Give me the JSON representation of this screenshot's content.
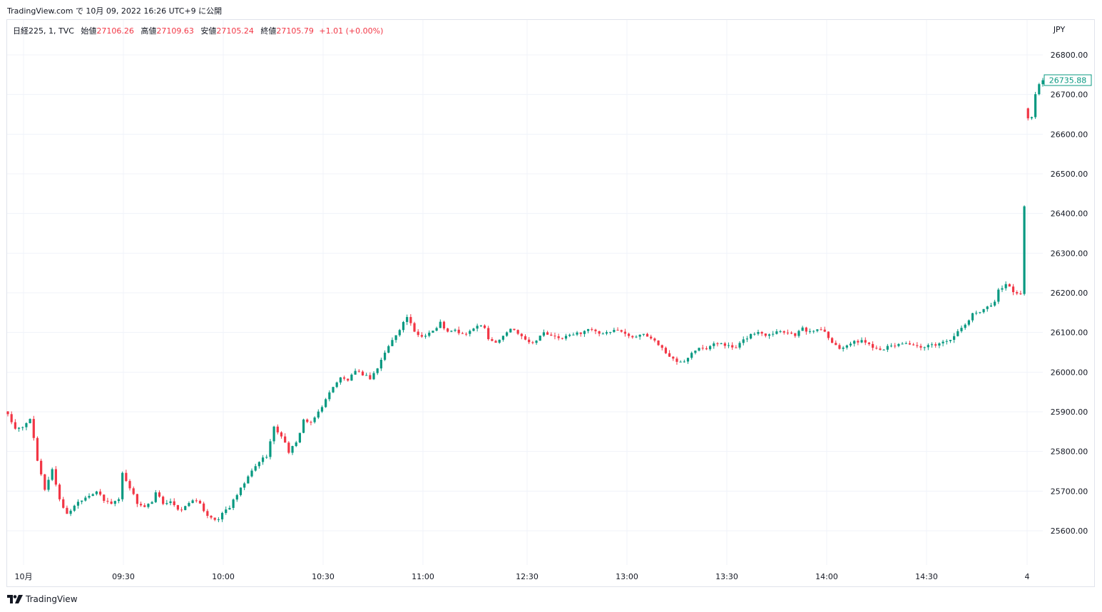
{
  "header": {
    "note": "TradingView.com で 10月 09, 2022 16:26 UTC+9 に公開"
  },
  "legend": {
    "symbol": "日経225, 1, TVC",
    "open_label": "始値",
    "open": "27106.26",
    "high_label": "高値",
    "high": "27109.63",
    "low_label": "安値",
    "low": "27105.24",
    "close_label": "終値",
    "close": "27105.79",
    "change": "+1.01 (+0.00%)"
  },
  "footer": {
    "brand": "TradingView"
  },
  "colors": {
    "up": "#089981",
    "down": "#f23645",
    "grid": "#f0f3fa",
    "text": "#131722"
  },
  "chart_data": {
    "type": "candlestick",
    "currency": "JPY",
    "ylim": [
      25520,
      26880
    ],
    "y_ticks": [
      "26800.00",
      "26700.00",
      "26600.00",
      "26500.00",
      "26400.00",
      "26300.00",
      "26200.00",
      "26100.00",
      "26000.00",
      "25900.00",
      "25800.00",
      "25700.00",
      "25600.00"
    ],
    "x_ticks": [
      "10月",
      "09:30",
      "10:00",
      "10:30",
      "11:00",
      "12:30",
      "13:00",
      "13:30",
      "14:00",
      "14:30",
      "4"
    ],
    "last_price": "26735.88",
    "close_points": [
      [
        0,
        25895
      ],
      [
        2,
        25855
      ],
      [
        4,
        25860
      ],
      [
        6,
        25885
      ],
      [
        8,
        25775
      ],
      [
        10,
        25705
      ],
      [
        12,
        25755
      ],
      [
        14,
        25680
      ],
      [
        16,
        25640
      ],
      [
        18,
        25665
      ],
      [
        20,
        25680
      ],
      [
        22,
        25690
      ],
      [
        24,
        25700
      ],
      [
        26,
        25675
      ],
      [
        28,
        25670
      ],
      [
        30,
        25680
      ],
      [
        31,
        25745
      ],
      [
        33,
        25710
      ],
      [
        35,
        25670
      ],
      [
        37,
        25660
      ],
      [
        39,
        25670
      ],
      [
        40,
        25695
      ],
      [
        42,
        25670
      ],
      [
        44,
        25675
      ],
      [
        46,
        25650
      ],
      [
        48,
        25660
      ],
      [
        50,
        25680
      ],
      [
        52,
        25665
      ],
      [
        54,
        25640
      ],
      [
        56,
        25630
      ],
      [
        57,
        25625
      ],
      [
        58,
        25645
      ],
      [
        60,
        25660
      ],
      [
        62,
        25690
      ],
      [
        64,
        25720
      ],
      [
        66,
        25750
      ],
      [
        68,
        25775
      ],
      [
        70,
        25790
      ],
      [
        72,
        25860
      ],
      [
        74,
        25840
      ],
      [
        76,
        25800
      ],
      [
        78,
        25820
      ],
      [
        80,
        25880
      ],
      [
        82,
        25870
      ],
      [
        84,
        25900
      ],
      [
        86,
        25930
      ],
      [
        88,
        25965
      ],
      [
        90,
        25985
      ],
      [
        92,
        25980
      ],
      [
        94,
        26000
      ],
      [
        96,
        25995
      ],
      [
        98,
        25985
      ],
      [
        100,
        26010
      ],
      [
        102,
        26050
      ],
      [
        104,
        26080
      ],
      [
        106,
        26110
      ],
      [
        108,
        26140
      ],
      [
        110,
        26100
      ],
      [
        112,
        26090
      ],
      [
        114,
        26100
      ],
      [
        116,
        26110
      ],
      [
        117,
        26125
      ],
      [
        119,
        26100
      ],
      [
        121,
        26105
      ],
      [
        123,
        26095
      ],
      [
        125,
        26100
      ],
      [
        127,
        26120
      ],
      [
        129,
        26115
      ],
      [
        130,
        26085
      ],
      [
        132,
        26075
      ],
      [
        134,
        26090
      ],
      [
        136,
        26110
      ],
      [
        138,
        26100
      ],
      [
        140,
        26085
      ],
      [
        141,
        26075
      ],
      [
        143,
        26080
      ],
      [
        145,
        26100
      ],
      [
        147,
        26090
      ],
      [
        149,
        26085
      ],
      [
        151,
        26090
      ],
      [
        153,
        26095
      ],
      [
        155,
        26100
      ],
      [
        157,
        26110
      ],
      [
        159,
        26100
      ],
      [
        161,
        26095
      ],
      [
        163,
        26100
      ],
      [
        165,
        26110
      ],
      [
        167,
        26095
      ],
      [
        169,
        26090
      ],
      [
        171,
        26095
      ],
      [
        173,
        26090
      ],
      [
        175,
        26080
      ],
      [
        177,
        26060
      ],
      [
        179,
        26040
      ],
      [
        181,
        26025
      ],
      [
        183,
        26030
      ],
      [
        185,
        26050
      ],
      [
        187,
        26065
      ],
      [
        189,
        26060
      ],
      [
        191,
        26070
      ],
      [
        193,
        26075
      ],
      [
        195,
        26065
      ],
      [
        197,
        26060
      ],
      [
        199,
        26080
      ],
      [
        201,
        26095
      ],
      [
        203,
        26100
      ],
      [
        205,
        26095
      ],
      [
        207,
        26100
      ],
      [
        209,
        26105
      ],
      [
        211,
        26100
      ],
      [
        213,
        26095
      ],
      [
        215,
        26110
      ],
      [
        217,
        26100
      ],
      [
        219,
        26110
      ],
      [
        221,
        26105
      ],
      [
        223,
        26075
      ],
      [
        225,
        26060
      ],
      [
        227,
        26070
      ],
      [
        229,
        26075
      ],
      [
        231,
        26080
      ],
      [
        233,
        26070
      ],
      [
        235,
        26060
      ],
      [
        237,
        26060
      ],
      [
        239,
        26065
      ],
      [
        241,
        26070
      ],
      [
        243,
        26075
      ],
      [
        245,
        26065
      ],
      [
        247,
        26060
      ],
      [
        249,
        26065
      ],
      [
        251,
        26070
      ],
      [
        253,
        26075
      ],
      [
        255,
        26085
      ],
      [
        257,
        26100
      ],
      [
        259,
        26120
      ],
      [
        261,
        26145
      ],
      [
        263,
        26155
      ],
      [
        265,
        26165
      ],
      [
        267,
        26175
      ],
      [
        268,
        26210
      ],
      [
        270,
        26220
      ],
      [
        272,
        26205
      ],
      [
        274,
        26195
      ],
      [
        276,
        26640
      ],
      [
        277,
        26645
      ],
      [
        278,
        26700
      ],
      [
        279,
        26728
      ],
      [
        280,
        26736
      ]
    ]
  }
}
